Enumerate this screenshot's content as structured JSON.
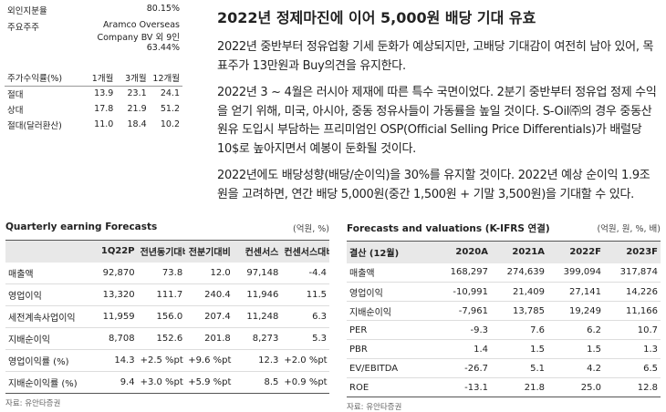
{
  "holders": {
    "rows": [
      [
        "외인지분율",
        "80.15%"
      ],
      [
        "주요주주",
        "Aramco Overseas Company BV 외 9인 63.44%"
      ]
    ]
  },
  "returns": {
    "header": [
      "주가수익률(%)",
      "1개월",
      "3개월",
      "12개월"
    ],
    "rows": [
      [
        "절대",
        "13.9",
        "23.1",
        "24.1"
      ],
      [
        "상대",
        "17.8",
        "21.9",
        "51.2"
      ],
      [
        "절대(달러환산)",
        "11.0",
        "18.4",
        "10.2"
      ]
    ]
  },
  "article": {
    "title": "2022년 정제마진에 이어 5,000원 배당 기대 유효",
    "paragraphs": [
      "2022년 중반부터 정유업황 기세 둔화가 예상되지만, 고배당 기대감이 여전히 남아 있어, 목표주가 13만원과 Buy의견을 유지한다.",
      "2022년 3 ~ 4월은 러시아 제재에 따른 특수 국면이었다.  2분기 중반부터 정유업 정제 수익을 얻기 위해, 미국, 아시아, 중동 정유사들이 가동률을 높일 것이다.  S-Oil㈜의 경우 중동산 원유 도입시 부담하는 프리미엄인 OSP(Official Selling Price Differentials)가 배럴당 10$로 높아지면서 예봉이 둔화될 것이다.",
      "2022년에도 배당성향(배당/순이익)을 30%를 유지할 것이다.  2022년 예상 순이익 1.9조원을 고려하면, 연간 배당 5,000원(중간 1,500원 + 기말 3,500원)을 기대할 수 있다."
    ]
  },
  "quarterly": {
    "title": "Quarterly earning Forecasts",
    "unit": "(억원, %)",
    "header": [
      "1Q22P",
      "전년동기대비",
      "전분기대비",
      "컨센서스",
      "컨센서스대비"
    ],
    "rows": [
      [
        "매출액",
        "92,870",
        "73.8",
        "12.0",
        "97,148",
        "-4.4"
      ],
      [
        "영업이익",
        "13,320",
        "111.7",
        "240.4",
        "11,946",
        "11.5"
      ],
      [
        "세전계속사업이익",
        "11,959",
        "156.0",
        "207.4",
        "11,248",
        "6.3"
      ],
      [
        "지배순이익",
        "8,708",
        "152.6",
        "201.8",
        "8,273",
        "5.3"
      ],
      [
        "영업이익률 (%)",
        "14.3",
        "+2.5 %pt",
        "+9.6 %pt",
        "12.3",
        "+2.0 %pt"
      ],
      [
        "지배순이익률 (%)",
        "9.4",
        "+3.0 %pt",
        "+5.9 %pt",
        "8.5",
        "+0.9 %pt"
      ]
    ],
    "source": "자료: 유안타증권"
  },
  "valuations": {
    "title": "Forecasts and valuations (K-IFRS 연결)",
    "unit": "(억원, 원, %, 배)",
    "header": [
      "결산 (12월)",
      "2020A",
      "2021A",
      "2022F",
      "2023F"
    ],
    "rows": [
      [
        "매출액",
        "168,297",
        "274,639",
        "399,094",
        "317,874"
      ],
      [
        "영업이익",
        "-10,991",
        "21,409",
        "27,141",
        "14,226"
      ],
      [
        "지배순이익",
        "-7,961",
        "13,785",
        "19,249",
        "11,166"
      ],
      [
        "PER",
        "-9.3",
        "7.6",
        "6.2",
        "10.7"
      ],
      [
        "PBR",
        "1.4",
        "1.5",
        "1.5",
        "1.3"
      ],
      [
        "EV/EBITDA",
        "-26.7",
        "5.1",
        "4.2",
        "6.5"
      ],
      [
        "ROE",
        "-13.1",
        "21.8",
        "25.0",
        "12.8"
      ]
    ],
    "source": "자료: 유안타증권"
  }
}
